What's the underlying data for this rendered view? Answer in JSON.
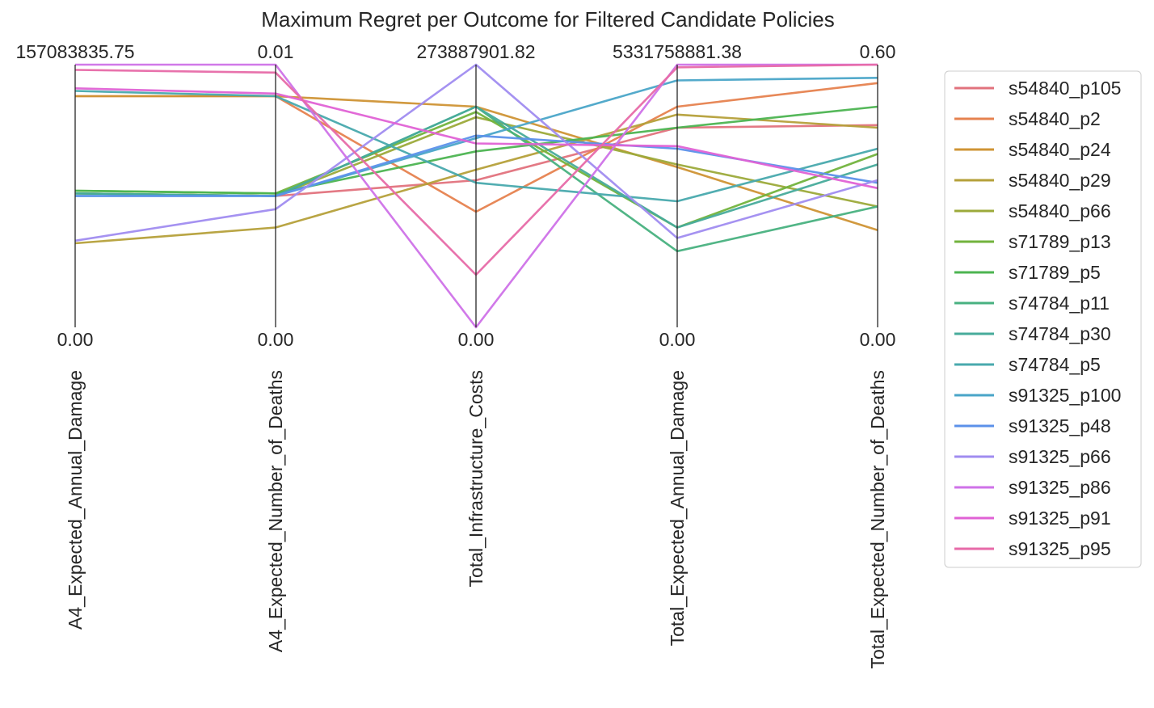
{
  "chart_data": {
    "type": "parallel_coordinates",
    "title": "Maximum Regret per Outcome for Filtered Candidate Policies",
    "axes": [
      {
        "name": "A4_Expected_Annual_Damage",
        "min": 0,
        "max": 157083835.75,
        "min_label": "0.00",
        "max_label": "157083835.75"
      },
      {
        "name": "A4_Expected_Number_of_Deaths",
        "min": 0,
        "max": 0.01,
        "min_label": "0.00",
        "max_label": "0.01"
      },
      {
        "name": "Total_Infrastructure_Costs",
        "min": 0,
        "max": 273887901.82,
        "min_label": "0.00",
        "max_label": "273887901.82"
      },
      {
        "name": "Total_Expected_Annual_Damage",
        "min": 0,
        "max": 5331758881.38,
        "min_label": "0.00",
        "max_label": "5331758881.38"
      },
      {
        "name": "Total_Expected_Number_of_Deaths",
        "min": 0,
        "max": 0.6,
        "min_label": "0.00",
        "max_label": "0.60"
      }
    ],
    "normalized": true,
    "grid": false,
    "legend_position": "right",
    "series": [
      {
        "name": "s54840_p105",
        "color": "#e1727d",
        "values": [
          0.51,
          0.5,
          0.56,
          0.76,
          0.77
        ]
      },
      {
        "name": "s54840_p2",
        "color": "#e6824f",
        "values": [
          0.88,
          0.88,
          0.44,
          0.84,
          0.93
        ]
      },
      {
        "name": "s54840_p24",
        "color": "#cf9435",
        "values": [
          0.88,
          0.88,
          0.84,
          0.61,
          0.37
        ]
      },
      {
        "name": "s54840_p29",
        "color": "#b5a03a",
        "values": [
          0.32,
          0.38,
          0.6,
          0.81,
          0.76
        ]
      },
      {
        "name": "s54840_p66",
        "color": "#9caa3a",
        "values": [
          0.51,
          0.5,
          0.8,
          0.62,
          0.46
        ]
      },
      {
        "name": "s71789_p13",
        "color": "#72b33d",
        "values": [
          0.52,
          0.51,
          0.82,
          0.38,
          0.66
        ]
      },
      {
        "name": "s71789_p5",
        "color": "#4cb451",
        "values": [
          0.52,
          0.51,
          0.67,
          0.76,
          0.84
        ]
      },
      {
        "name": "s74784_p11",
        "color": "#48b180",
        "values": [
          0.51,
          0.5,
          0.84,
          0.29,
          0.46
        ]
      },
      {
        "name": "s74784_p30",
        "color": "#47ab9b",
        "values": [
          0.51,
          0.5,
          0.84,
          0.38,
          0.62
        ]
      },
      {
        "name": "s74784_p5",
        "color": "#48a9ad",
        "values": [
          0.9,
          0.88,
          0.55,
          0.48,
          0.68
        ]
      },
      {
        "name": "s91325_p100",
        "color": "#4aa5c8",
        "values": [
          0.5,
          0.5,
          0.72,
          0.94,
          0.95
        ]
      },
      {
        "name": "s91325_p48",
        "color": "#5c91ea",
        "values": [
          0.5,
          0.5,
          0.73,
          0.68,
          0.55
        ]
      },
      {
        "name": "s91325_p66",
        "color": "#a08cf0",
        "values": [
          0.33,
          0.45,
          1.0,
          0.34,
          0.56
        ]
      },
      {
        "name": "s91325_p86",
        "color": "#cf72e8",
        "values": [
          1.0,
          1.0,
          0.0,
          1.0,
          1.0
        ]
      },
      {
        "name": "s91325_p91",
        "color": "#e062d5",
        "values": [
          0.91,
          0.89,
          0.7,
          0.69,
          0.53
        ]
      },
      {
        "name": "s91325_p95",
        "color": "#e76aa8",
        "values": [
          0.98,
          0.97,
          0.2,
          0.99,
          1.0
        ]
      }
    ]
  }
}
